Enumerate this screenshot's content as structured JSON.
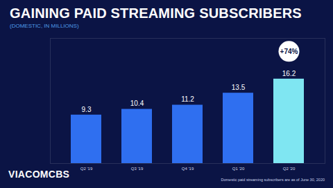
{
  "chart_data": {
    "type": "bar",
    "title": "GAINING PAID STREAMING SUBSCRIBERS",
    "subtitle": "(DOMESTIC, IN MILLIONS)",
    "categories": [
      "Q2 '19",
      "Q3 '19",
      "Q4 '19",
      "Q1 '20",
      "Q2 '20"
    ],
    "values": [
      9.3,
      10.4,
      11.2,
      13.5,
      16.2
    ],
    "colors": [
      "#2f6ff0",
      "#2f6ff0",
      "#2f6ff0",
      "#2f6ff0",
      "#7fe6f2"
    ],
    "ylim": [
      0,
      24
    ],
    "data_labels": true,
    "tick_labels": "x",
    "grid": false,
    "annotation": "+74%",
    "logo": "VIACOMCBS",
    "note": "Domestic paid streaming subscribers are as of June 30, 2020"
  }
}
